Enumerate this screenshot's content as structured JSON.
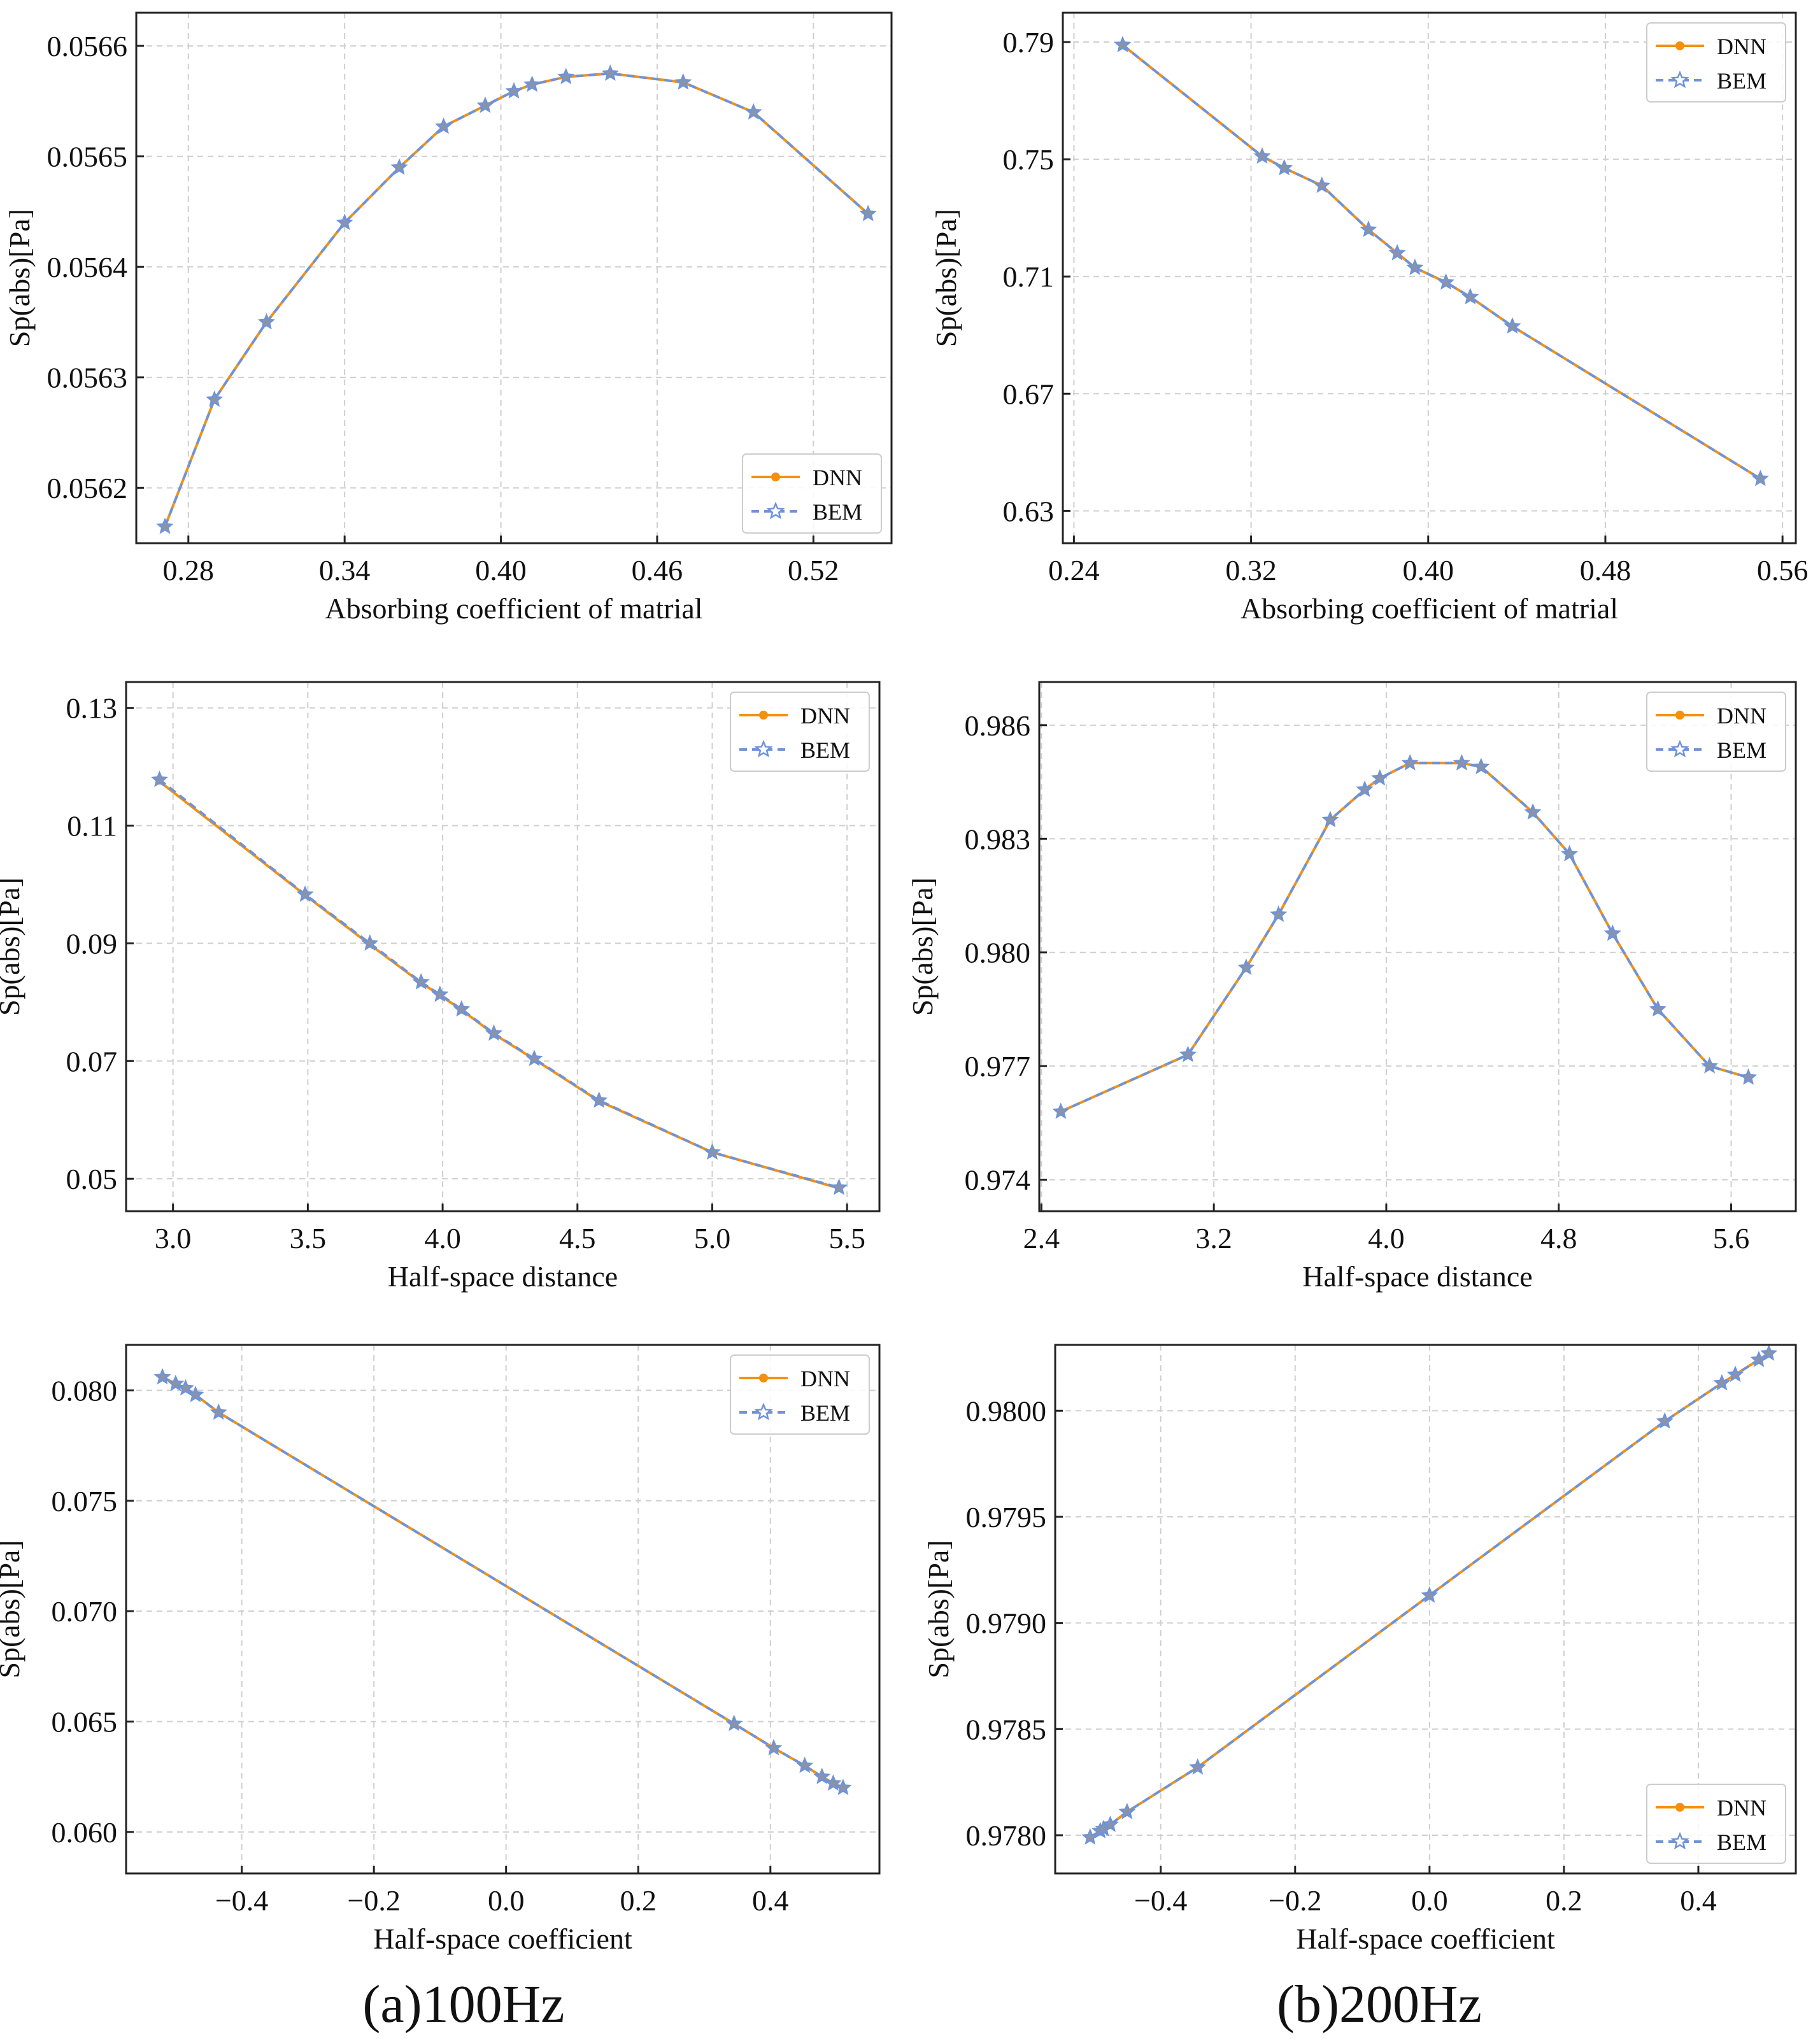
{
  "captions": [
    "(a)100Hz",
    "(b)200Hz"
  ],
  "colors": {
    "DNN": "#f5900f",
    "BEM": "#6f93d6",
    "star_fill": "#8d93a6"
  },
  "chart_data": [
    {
      "type": "line",
      "panel": "(a)100Hz",
      "xlabel": "Absorbing coefficient of matrial",
      "ylabel": "Sp(abs)[Pa]",
      "xlim": [
        0.26,
        0.55
      ],
      "ylim": [
        0.05615,
        0.05663
      ],
      "xticks": [
        "0.28",
        "0.34",
        "0.40",
        "0.46",
        "0.52"
      ],
      "yticks": [
        "0.0562",
        "0.0563",
        "0.0564",
        "0.0565",
        "0.0566"
      ],
      "grid": true,
      "legend": "lower-right",
      "series": [
        {
          "name": "DNN",
          "marker": "circle",
          "linestyle": "solid",
          "x": [
            0.271,
            0.29,
            0.31,
            0.34,
            0.361,
            0.378,
            0.394,
            0.405,
            0.412,
            0.425,
            0.442,
            0.47,
            0.497,
            0.541
          ],
          "y": [
            0.056165,
            0.05628,
            0.05635,
            0.05644,
            0.05649,
            0.056527,
            0.056546,
            0.056559,
            0.056565,
            0.056572,
            0.056575,
            0.056567,
            0.05654,
            0.056448
          ]
        },
        {
          "name": "BEM",
          "marker": "star",
          "linestyle": "dashed",
          "x": [
            0.271,
            0.29,
            0.31,
            0.34,
            0.361,
            0.378,
            0.394,
            0.405,
            0.412,
            0.425,
            0.442,
            0.47,
            0.497,
            0.541
          ],
          "y": [
            0.056165,
            0.05628,
            0.05635,
            0.05644,
            0.05649,
            0.056527,
            0.056546,
            0.056559,
            0.056565,
            0.056572,
            0.056575,
            0.056567,
            0.05654,
            0.056448
          ]
        }
      ]
    },
    {
      "type": "line",
      "panel": "(b)200Hz",
      "xlabel": "Absorbing coefficient of matrial",
      "ylabel": "Sp(abs)[Pa]",
      "xlim": [
        0.235,
        0.566
      ],
      "ylim": [
        0.619,
        0.8
      ],
      "xticks": [
        "0.24",
        "0.32",
        "0.40",
        "0.48",
        "0.56"
      ],
      "yticks": [
        "0.63",
        "0.67",
        "0.71",
        "0.75",
        "0.79"
      ],
      "grid": true,
      "legend": "upper-right",
      "series": [
        {
          "name": "DNN",
          "marker": "circle",
          "linestyle": "solid",
          "x": [
            0.262,
            0.325,
            0.335,
            0.352,
            0.373,
            0.386,
            0.394,
            0.408,
            0.419,
            0.438,
            0.55
          ],
          "y": [
            0.789,
            0.751,
            0.747,
            0.741,
            0.726,
            0.718,
            0.713,
            0.708,
            0.703,
            0.693,
            0.641
          ]
        },
        {
          "name": "BEM",
          "marker": "star",
          "linestyle": "dashed",
          "x": [
            0.262,
            0.325,
            0.335,
            0.352,
            0.373,
            0.386,
            0.394,
            0.408,
            0.419,
            0.438,
            0.55
          ],
          "y": [
            0.789,
            0.751,
            0.747,
            0.741,
            0.726,
            0.718,
            0.713,
            0.708,
            0.703,
            0.693,
            0.641
          ]
        }
      ]
    },
    {
      "type": "line",
      "panel": "(a)100Hz",
      "xlabel": "Half-space distance",
      "ylabel": "Sp(abs)[Pa]",
      "xlim": [
        2.826,
        5.62
      ],
      "ylim": [
        0.0445,
        0.1344
      ],
      "xticks": [
        "3.0",
        "3.5",
        "4.0",
        "4.5",
        "5.0",
        "5.5"
      ],
      "yticks": [
        "0.05",
        "0.07",
        "0.09",
        "0.11",
        "0.13"
      ],
      "grid": true,
      "legend": "upper-right",
      "series": [
        {
          "name": "DNN",
          "marker": "circle",
          "linestyle": "solid",
          "x": [
            2.95,
            3.49,
            3.73,
            3.92,
            3.99,
            4.07,
            4.19,
            4.34,
            4.58,
            5.0,
            5.47
          ],
          "y": [
            0.1175,
            0.0982,
            0.0898,
            0.0833,
            0.0812,
            0.0787,
            0.0746,
            0.0703,
            0.0632,
            0.0545,
            0.0484
          ]
        },
        {
          "name": "BEM",
          "marker": "star",
          "linestyle": "dashed",
          "x": [
            2.95,
            3.49,
            3.73,
            3.92,
            3.99,
            4.07,
            4.19,
            4.34,
            4.58,
            5.0,
            5.47
          ],
          "y": [
            0.1178,
            0.0983,
            0.09,
            0.0834,
            0.0813,
            0.0788,
            0.0747,
            0.0704,
            0.0633,
            0.0545,
            0.0485
          ]
        }
      ]
    },
    {
      "type": "line",
      "panel": "(b)200Hz",
      "xlabel": "Half-space distance",
      "ylabel": "Sp(abs)[Pa]",
      "xlim": [
        2.39,
        5.9
      ],
      "ylim": [
        0.97317,
        0.98714
      ],
      "xticks": [
        "2.4",
        "3.2",
        "4.0",
        "4.8",
        "5.6"
      ],
      "yticks": [
        "0.974",
        "0.977",
        "0.980",
        "0.983",
        "0.986"
      ],
      "grid": true,
      "legend": "upper-right",
      "series": [
        {
          "name": "DNN",
          "marker": "circle",
          "linestyle": "solid",
          "x": [
            2.49,
            3.08,
            3.35,
            3.5,
            3.74,
            3.9,
            3.97,
            4.11,
            4.35,
            4.44,
            4.68,
            4.85,
            5.05,
            5.26,
            5.5,
            5.68
          ],
          "y": [
            0.9758,
            0.9773,
            0.9796,
            0.981,
            0.9835,
            0.9843,
            0.9846,
            0.985,
            0.985,
            0.9849,
            0.9837,
            0.9826,
            0.9805,
            0.9785,
            0.977,
            0.9767
          ]
        },
        {
          "name": "BEM",
          "marker": "star",
          "linestyle": "dashed",
          "x": [
            2.49,
            3.08,
            3.35,
            3.5,
            3.74,
            3.9,
            3.97,
            4.11,
            4.35,
            4.44,
            4.68,
            4.85,
            5.05,
            5.26,
            5.5,
            5.68
          ],
          "y": [
            0.9758,
            0.9773,
            0.9796,
            0.981,
            0.9835,
            0.9843,
            0.9846,
            0.985,
            0.985,
            0.9849,
            0.9837,
            0.9826,
            0.9805,
            0.9785,
            0.977,
            0.9767
          ]
        }
      ]
    },
    {
      "type": "line",
      "panel": "(a)100Hz",
      "xlabel": "Half-space coefficient",
      "ylabel": "Sp(abs)[Pa]",
      "xlim": [
        -0.575,
        0.565
      ],
      "ylim": [
        0.05812,
        0.08206
      ],
      "xticks": [
        "−0.4",
        "−0.2",
        "0.0",
        "0.2",
        "0.4"
      ],
      "yticks": [
        "0.060",
        "0.065",
        "0.070",
        "0.075",
        "0.080"
      ],
      "grid": true,
      "legend": "upper-right",
      "series": [
        {
          "name": "DNN",
          "marker": "circle",
          "linestyle": "solid",
          "x": [
            -0.52,
            -0.5,
            -0.485,
            -0.47,
            -0.435,
            0.345,
            0.405,
            0.452,
            0.478,
            0.495,
            0.51
          ],
          "y": [
            0.0806,
            0.0803,
            0.0801,
            0.0798,
            0.079,
            0.0649,
            0.0638,
            0.063,
            0.0625,
            0.0622,
            0.062
          ]
        },
        {
          "name": "BEM",
          "marker": "star",
          "linestyle": "dashed",
          "x": [
            -0.52,
            -0.5,
            -0.485,
            -0.47,
            -0.435,
            0.345,
            0.405,
            0.452,
            0.478,
            0.495,
            0.51
          ],
          "y": [
            0.0806,
            0.0803,
            0.0801,
            0.0798,
            0.079,
            0.0649,
            0.0638,
            0.063,
            0.0625,
            0.0622,
            0.062
          ]
        }
      ]
    },
    {
      "type": "line",
      "panel": "(b)200Hz",
      "xlabel": "Half-space coefficient",
      "ylabel": "Sp(abs)[Pa]",
      "xlim": [
        -0.557,
        0.545
      ],
      "ylim": [
        0.97782,
        0.98031
      ],
      "xticks": [
        "−0.4",
        "−0.2",
        "0.0",
        "0.2",
        "0.4"
      ],
      "yticks": [
        "0.9780",
        "0.9785",
        "0.9790",
        "0.9795",
        "0.9800"
      ],
      "grid": true,
      "legend": "lower-right",
      "series": [
        {
          "name": "DNN",
          "marker": "circle",
          "linestyle": "solid",
          "x": [
            -0.505,
            -0.49,
            -0.485,
            -0.475,
            -0.45,
            -0.345,
            0.0,
            0.35,
            0.435,
            0.455,
            0.49,
            0.505
          ],
          "y": [
            0.97799,
            0.97802,
            0.97803,
            0.97805,
            0.97811,
            0.97832,
            0.97913,
            0.97995,
            0.98013,
            0.98017,
            0.98024,
            0.98027
          ]
        },
        {
          "name": "BEM",
          "marker": "star",
          "linestyle": "dashed",
          "x": [
            -0.505,
            -0.49,
            -0.485,
            -0.475,
            -0.45,
            -0.345,
            0.0,
            0.35,
            0.435,
            0.455,
            0.49,
            0.505
          ],
          "y": [
            0.97799,
            0.97802,
            0.97803,
            0.97805,
            0.97811,
            0.97832,
            0.97913,
            0.97995,
            0.98013,
            0.98017,
            0.98024,
            0.98027
          ]
        }
      ]
    }
  ]
}
